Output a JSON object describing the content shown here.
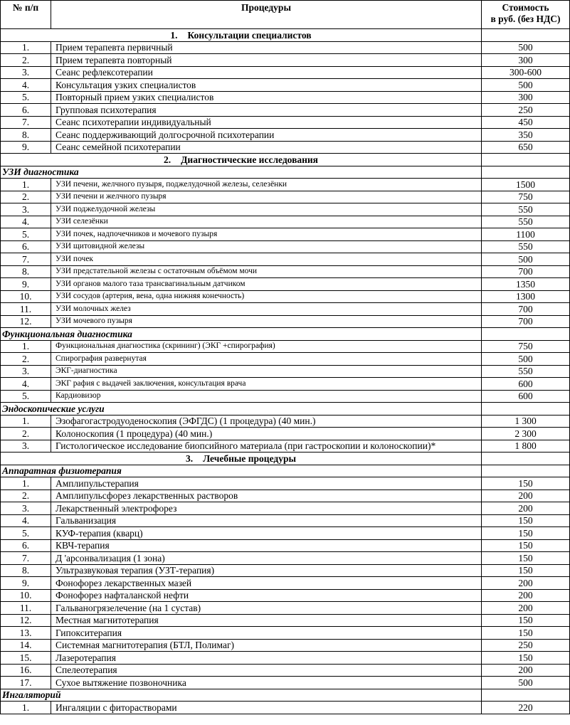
{
  "header": {
    "number": "№ п/п",
    "procedures": "Процедуры",
    "price_line1": "Стоимость",
    "price_line2": "в руб. (без НДС)"
  },
  "sections": [
    {
      "number": "1.",
      "title": "Консультации специалистов",
      "groups": [
        {
          "rows": [
            [
              "1.",
              "Прием терапевта первичный",
              "500"
            ],
            [
              "2.",
              "Прием терапевта повторный",
              "300"
            ],
            [
              "3.",
              "Сеанс рефлексотерапии",
              "300-600"
            ],
            [
              "4.",
              "Консультация узких специалистов",
              "500"
            ],
            [
              "5.",
              "Повторный прием узких специалистов",
              "300"
            ],
            [
              "6.",
              "Групповая психотерапия",
              "250"
            ],
            [
              "7.",
              "Сеанс психотерапии индивидуальный",
              "450"
            ],
            [
              "8.",
              "Сеанс поддерживающий долгосрочной психотерапии",
              "350"
            ],
            [
              "9.",
              "Сеанс семейной  психотерапии",
              "650"
            ]
          ]
        }
      ]
    },
    {
      "number": "2.",
      "title": "Диагностические исследования",
      "groups": [
        {
          "title": "УЗИ диагностика",
          "rows": [
            [
              "1.",
              "УЗИ  печени, желчного пузыря, поджелудочной  железы, селезёнки",
              "1500"
            ],
            [
              "2.",
              "УЗИ  печени  и желчного пузыря",
              "750"
            ],
            [
              "3.",
              "УЗИ поджелудочной  железы",
              "550"
            ],
            [
              "4.",
              "УЗИ  селезёнки",
              "550"
            ],
            [
              "5.",
              "УЗИ  почек, надпочечников и мочевого  пузыря",
              "1100"
            ],
            [
              "6.",
              "УЗИ  щитовидной железы",
              "550"
            ],
            [
              "7.",
              "УЗИ   почек",
              "500"
            ],
            [
              "8.",
              "УЗИ предстательной  железы с остаточным объёмом  мочи",
              "700"
            ],
            [
              "9.",
              "УЗИ органов  малого таза  трансвагинальным  датчиком",
              "1350"
            ],
            [
              "10.",
              "УЗИ сосудов (артерия, вена, одна нижняя конечность)",
              "1300"
            ],
            [
              "11.",
              "УЗИ  молочных желез",
              "700"
            ],
            [
              "12.",
              "УЗИ мочевого пузыря",
              "700"
            ]
          ]
        },
        {
          "title": "Функциональная диагностика",
          "rows": [
            [
              "1.",
              "Функциональная диагностика (скрининг) (ЭКГ +спирография)",
              "750"
            ],
            [
              "2.",
              "Спирография развернутая",
              "500"
            ],
            [
              "3.",
              "ЭКГ-диагностика",
              "550"
            ],
            [
              "4.",
              "ЭКГ рафия с выдачей заключения, консультация врача",
              "600"
            ],
            [
              "5.",
              "Кардиовизор",
              "600"
            ]
          ]
        },
        {
          "title": "Эндоскопические услуги",
          "rows": [
            [
              "1.",
              "Эзофагогастродуоденоскопия (ЭФГДС) (1 процедура) (40 мин.)",
              "1 300"
            ],
            [
              "2.",
              "Колоноскопия (1 процедура) (40 мин.)",
              "2 300"
            ],
            [
              "3.",
              "Гистологическое исследование биопсийного материала (при гастроскопии и колоноскопии)*",
              "1 800"
            ]
          ]
        }
      ]
    },
    {
      "number": "3.",
      "title": "Лечебные процедуры",
      "groups": [
        {
          "title": "Аппаратная физиотерапия",
          "rows": [
            [
              "1.",
              "Амплипульстерапия",
              "150"
            ],
            [
              "2.",
              "Амплипульсфорез лекарственных растворов",
              "200"
            ],
            [
              "3.",
              "Лекарственный электрофорез",
              "200"
            ],
            [
              "4.",
              "Гальванизация",
              "150"
            ],
            [
              "5.",
              "КУФ-терапия (кварц)",
              "150"
            ],
            [
              "6.",
              "КВЧ-терапия",
              "150"
            ],
            [
              "7.",
              "Д 'арсонвализация (1 зона)",
              "150"
            ],
            [
              "8.",
              "Ультразвуковая терапия (УЗТ-терапия)",
              "150"
            ],
            [
              "9.",
              "Фонофорез лекарственных мазей",
              "200"
            ],
            [
              "10.",
              "Фонофорез нафталанской нефти",
              "200"
            ],
            [
              "11.",
              "Гальваногрязелечение (на 1 сустав)",
              "200"
            ],
            [
              "12.",
              "Местная  магнитотерапия",
              "150"
            ],
            [
              "13.",
              "Гипокситерапия",
              "150"
            ],
            [
              "14.",
              "Системная магнитотерапия (БТЛ, Полимаг)",
              "250"
            ],
            [
              "15.",
              "Лазеротерапия",
              "150"
            ],
            [
              "16.",
              "Спелеотерапия",
              "200"
            ],
            [
              "17.",
              "Сухое вытяжение позвоночника",
              "500"
            ]
          ]
        },
        {
          "title": "Ингаляторий",
          "rows": [
            [
              "1.",
              "Ингаляции с фиторастворами",
              "220"
            ]
          ]
        }
      ]
    }
  ]
}
